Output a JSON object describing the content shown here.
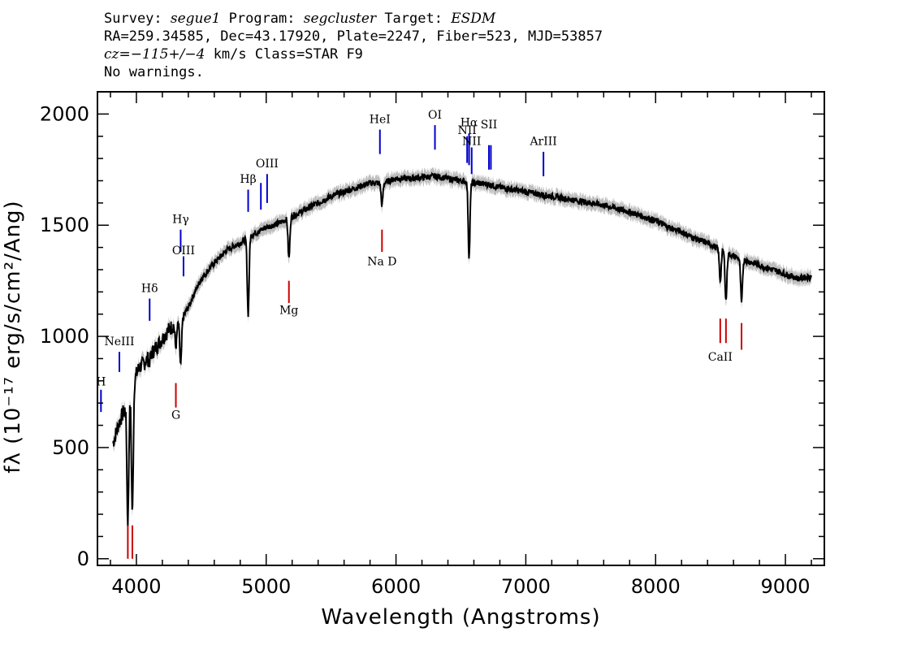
{
  "header": {
    "line1": {
      "survey_label": "Survey: ",
      "survey": "segue1",
      "program_label": " Program: ",
      "program": "segcluster",
      "target_label": " Target: ",
      "target": "ESDM"
    },
    "line2": "RA=259.34585, Dec=43.17920, Plate=2247, Fiber=523, MJD=53857",
    "line3": {
      "cz": "cz=−115+/−4",
      "rest": " km/s Class=STAR F9"
    },
    "line4": "No warnings."
  },
  "chart_data": {
    "type": "line",
    "xlabel": "Wavelength (Angstroms)",
    "ylabel": "fλ (10⁻¹⁷ erg/s/cm²/Ang)",
    "xlim": [
      3700,
      9300
    ],
    "ylim": [
      -30,
      2100
    ],
    "x_ticks": [
      4000,
      5000,
      6000,
      7000,
      8000,
      9000
    ],
    "y_ticks": [
      0,
      500,
      1000,
      1500,
      2000
    ],
    "colors": {
      "spectrum": "#000000",
      "error_band": "#bdbdbd",
      "emission": "#0000cc",
      "absorption": "#cc0000"
    },
    "spectrum_points": [
      [
        3820,
        520
      ],
      [
        3860,
        600
      ],
      [
        3900,
        660
      ],
      [
        3940,
        700
      ],
      [
        3980,
        800
      ],
      [
        4020,
        860
      ],
      [
        4060,
        880
      ],
      [
        4100,
        910
      ],
      [
        4150,
        950
      ],
      [
        4200,
        990
      ],
      [
        4250,
        1030
      ],
      [
        4300,
        1060
      ],
      [
        4350,
        1080
      ],
      [
        4400,
        1130
      ],
      [
        4450,
        1200
      ],
      [
        4500,
        1260
      ],
      [
        4600,
        1330
      ],
      [
        4700,
        1390
      ],
      [
        4800,
        1420
      ],
      [
        4900,
        1460
      ],
      [
        5000,
        1490
      ],
      [
        5100,
        1510
      ],
      [
        5200,
        1540
      ],
      [
        5300,
        1570
      ],
      [
        5400,
        1600
      ],
      [
        5500,
        1630
      ],
      [
        5600,
        1650
      ],
      [
        5700,
        1670
      ],
      [
        5800,
        1690
      ],
      [
        5900,
        1690
      ],
      [
        6000,
        1710
      ],
      [
        6100,
        1710
      ],
      [
        6200,
        1715
      ],
      [
        6300,
        1720
      ],
      [
        6400,
        1710
      ],
      [
        6500,
        1700
      ],
      [
        6600,
        1690
      ],
      [
        6700,
        1685
      ],
      [
        6800,
        1670
      ],
      [
        6900,
        1660
      ],
      [
        7000,
        1650
      ],
      [
        7100,
        1640
      ],
      [
        7200,
        1630
      ],
      [
        7300,
        1620
      ],
      [
        7400,
        1610
      ],
      [
        7500,
        1600
      ],
      [
        7600,
        1590
      ],
      [
        7700,
        1575
      ],
      [
        7800,
        1560
      ],
      [
        7900,
        1540
      ],
      [
        8000,
        1520
      ],
      [
        8100,
        1490
      ],
      [
        8200,
        1470
      ],
      [
        8300,
        1440
      ],
      [
        8400,
        1420
      ],
      [
        8500,
        1390
      ],
      [
        8600,
        1360
      ],
      [
        8700,
        1340
      ],
      [
        8800,
        1320
      ],
      [
        8900,
        1300
      ],
      [
        9000,
        1280
      ],
      [
        9100,
        1260
      ],
      [
        9200,
        1270
      ]
    ],
    "absorption_features": [
      {
        "wavelength": 3934,
        "depth_to": 170
      },
      {
        "wavelength": 3969,
        "depth_to": 210
      },
      {
        "wavelength": 4102,
        "depth_to": 890
      },
      {
        "wavelength": 4304,
        "depth_to": 950
      },
      {
        "wavelength": 4341,
        "depth_to": 870
      },
      {
        "wavelength": 4861,
        "depth_to": 1100
      },
      {
        "wavelength": 5175,
        "depth_to": 1350
      },
      {
        "wavelength": 5892,
        "depth_to": 1590
      },
      {
        "wavelength": 6563,
        "depth_to": 1360
      },
      {
        "wavelength": 8498,
        "depth_to": 1250
      },
      {
        "wavelength": 8542,
        "depth_to": 1160
      },
      {
        "wavelength": 8662,
        "depth_to": 1150
      }
    ],
    "emission_lines": [
      {
        "label": "H",
        "wavelength": 3727,
        "y0": 660,
        "y1": 760,
        "label_y": 780
      },
      {
        "label": "NeIII",
        "wavelength": 3869,
        "y0": 840,
        "y1": 930,
        "label_y": 960
      },
      {
        "label": "Hδ",
        "wavelength": 4102,
        "y0": 1070,
        "y1": 1170,
        "label_y": 1200
      },
      {
        "label": "Hγ",
        "wavelength": 4341,
        "y0": 1380,
        "y1": 1480,
        "label_y": 1510
      },
      {
        "label": "OIII",
        "wavelength": 4363,
        "y0": 1270,
        "y1": 1360,
        "label_y": 1370
      },
      {
        "label": "Hβ",
        "wavelength": 4861,
        "y0": 1560,
        "y1": 1660,
        "label_y": 1690
      },
      {
        "label": "",
        "wavelength": 4959,
        "y0": 1570,
        "y1": 1690,
        "label_y": 0
      },
      {
        "label": "OIII",
        "wavelength": 5007,
        "y0": 1600,
        "y1": 1730,
        "label_y": 1760
      },
      {
        "label": "HeI",
        "wavelength": 5876,
        "y0": 1820,
        "y1": 1930,
        "label_y": 1960
      },
      {
        "label": "OI",
        "wavelength": 6300,
        "y0": 1840,
        "y1": 1950,
        "label_y": 1980
      },
      {
        "label": "NII",
        "wavelength": 6548,
        "y0": 1780,
        "y1": 1900,
        "label_y": 1910
      },
      {
        "label": "Hα",
        "wavelength": 6563,
        "y0": 1770,
        "y1": 1910,
        "label_y": 1945
      },
      {
        "label": "NII",
        "wavelength": 6583,
        "y0": 1730,
        "y1": 1850,
        "label_y": 1860
      },
      {
        "label": "SII",
        "wavelength": 6716,
        "y0": 1750,
        "y1": 1860,
        "label_y": 1935
      },
      {
        "label": "",
        "wavelength": 6731,
        "y0": 1750,
        "y1": 1860,
        "label_y": 0
      },
      {
        "label": "ArIII",
        "wavelength": 7136,
        "y0": 1720,
        "y1": 1830,
        "label_y": 1860
      }
    ],
    "absorption_lines": [
      {
        "label": "",
        "wavelength": 3934,
        "y0": 0,
        "y1": 150,
        "label_y": 0
      },
      {
        "label": "",
        "wavelength": 3969,
        "y0": 0,
        "y1": 150,
        "label_y": 0
      },
      {
        "label": "G",
        "wavelength": 4304,
        "y0": 680,
        "y1": 790,
        "label_y": 630
      },
      {
        "label": "Mg",
        "wavelength": 5175,
        "y0": 1150,
        "y1": 1250,
        "label_y": 1100
      },
      {
        "label": "Na D",
        "wavelength": 5892,
        "y0": 1380,
        "y1": 1480,
        "label_y": 1320
      },
      {
        "label": "CaII",
        "wavelength": 8498,
        "y0": 970,
        "y1": 1080,
        "label_y": 890
      },
      {
        "label": "",
        "wavelength": 8542,
        "y0": 970,
        "y1": 1080,
        "label_y": 0
      },
      {
        "label": "",
        "wavelength": 8662,
        "y0": 940,
        "y1": 1060,
        "label_y": 0
      }
    ]
  }
}
